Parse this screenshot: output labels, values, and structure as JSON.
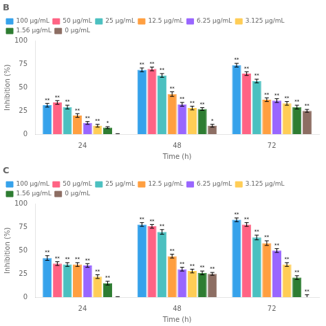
{
  "chart_data": [
    {
      "type": "bar",
      "title": "B",
      "xlabel": "Time (h)",
      "ylabel": "Inhibition (%)",
      "categories": [
        "24",
        "48",
        "72"
      ],
      "ylim": [
        0,
        100
      ],
      "yticks": [
        0,
        25,
        50,
        75,
        100
      ],
      "grid": false,
      "legend": "upper left",
      "series": [
        {
          "name": "100 μg/mL",
          "color": "#36a2eb",
          "values": [
            31,
            69,
            74
          ],
          "errors": [
            2.0,
            2.0,
            2.0
          ],
          "labels": [
            "**",
            "**",
            "**"
          ]
        },
        {
          "name": "50 μg/mL",
          "color": "#ff6384",
          "values": [
            34,
            70,
            65
          ],
          "errors": [
            2.0,
            2.0,
            2.0
          ],
          "labels": [
            "**",
            "**",
            "**"
          ]
        },
        {
          "name": "25 μg/mL",
          "color": "#4bc0c0",
          "values": [
            29,
            63,
            57
          ],
          "errors": [
            2.0,
            2.0,
            2.0
          ],
          "labels": [
            "**",
            "**",
            "**"
          ]
        },
        {
          "name": "12.5 μg/mL",
          "color": "#ff9f40",
          "values": [
            20,
            43,
            37
          ],
          "errors": [
            2.0,
            2.5,
            2.0
          ],
          "labels": [
            "**",
            "**",
            "**"
          ]
        },
        {
          "name": "6.25 μg/mL",
          "color": "#9966ff",
          "values": [
            12,
            32,
            36
          ],
          "errors": [
            1.5,
            2.0,
            2.0
          ],
          "labels": [
            "**",
            "**",
            "**"
          ]
        },
        {
          "name": "3.125 μg/mL",
          "color": "#ffcd56",
          "values": [
            9,
            28,
            33
          ],
          "errors": [
            1.5,
            2.0,
            2.0
          ],
          "labels": [
            "**",
            "**",
            "**"
          ]
        },
        {
          "name": "1.56 μg/mL",
          "color": "#2e7d32",
          "values": [
            7,
            27,
            29
          ],
          "errors": [
            1.0,
            1.5,
            2.0
          ],
          "labels": [
            "*",
            "**",
            "**"
          ]
        },
        {
          "name": "0 μg/mL",
          "color": "#8d6e63",
          "values": [
            0,
            9,
            25
          ],
          "errors": [
            0.5,
            1.5,
            1.5
          ],
          "labels": [
            null,
            "*",
            "**"
          ]
        }
      ]
    },
    {
      "type": "bar",
      "title": "C",
      "xlabel": "Time (h)",
      "ylabel": "Inhibition (%)",
      "categories": [
        "24",
        "48",
        "72"
      ],
      "ylim": [
        0,
        100
      ],
      "yticks": [
        0,
        25,
        50,
        75,
        100
      ],
      "grid": false,
      "legend": "upper left",
      "series": [
        {
          "name": "100 μg/mL",
          "color": "#36a2eb",
          "values": [
            42,
            78,
            83
          ],
          "errors": [
            2.5,
            2.0,
            2.0
          ],
          "labels": [
            "**",
            "**",
            "**"
          ]
        },
        {
          "name": "50 μg/mL",
          "color": "#ff6384",
          "values": [
            36,
            76,
            78
          ],
          "errors": [
            2.0,
            2.0,
            2.0
          ],
          "labels": [
            "**",
            "**",
            "**"
          ]
        },
        {
          "name": "25 μg/mL",
          "color": "#4bc0c0",
          "values": [
            35,
            70,
            64
          ],
          "errors": [
            2.0,
            2.5,
            2.5
          ],
          "labels": [
            "**",
            "**",
            "**"
          ]
        },
        {
          "name": "12.5 μg/mL",
          "color": "#ff9f40",
          "values": [
            35,
            44,
            58
          ],
          "errors": [
            2.0,
            2.0,
            2.5
          ],
          "labels": [
            "**",
            "**",
            "**"
          ]
        },
        {
          "name": "6.25 μg/mL",
          "color": "#9966ff",
          "values": [
            34,
            30,
            50
          ],
          "errors": [
            2.0,
            2.0,
            2.0
          ],
          "labels": [
            "**",
            "**",
            "**"
          ]
        },
        {
          "name": "3.125 μg/mL",
          "color": "#ffcd56",
          "values": [
            22,
            28,
            35
          ],
          "errors": [
            2.0,
            2.0,
            2.0
          ],
          "labels": [
            "**",
            "**",
            "**"
          ]
        },
        {
          "name": "1.56 μg/mL",
          "color": "#2e7d32",
          "values": [
            15,
            26,
            21
          ],
          "errors": [
            2.0,
            2.0,
            2.0
          ],
          "labels": [
            "**",
            "**",
            "**"
          ]
        },
        {
          "name": "0 μg/mL",
          "color": "#8d6e63",
          "values": [
            0,
            25,
            0
          ],
          "errors": [
            0.5,
            1.5,
            2.5
          ],
          "labels": [
            null,
            "**",
            "**"
          ]
        }
      ]
    }
  ]
}
